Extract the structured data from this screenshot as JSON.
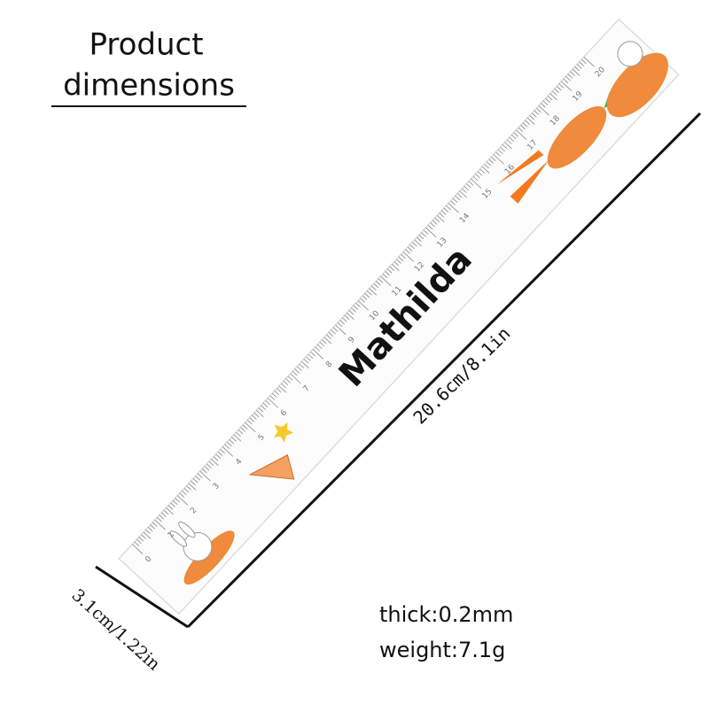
{
  "header": {
    "title": [
      "Product",
      "dimensions"
    ]
  },
  "ruler": {
    "name": "Mathilda",
    "scale": [
      0,
      1,
      2,
      3,
      4,
      5,
      6,
      7,
      8,
      9,
      10,
      11,
      12,
      13,
      14,
      15,
      16,
      17,
      18,
      19,
      20
    ]
  },
  "dimensions": {
    "length": "20.6cm/8.1in",
    "width": "3.1cm/1.22in",
    "thickness": "thick:0.2mm",
    "weight": "weight:7.1g"
  }
}
